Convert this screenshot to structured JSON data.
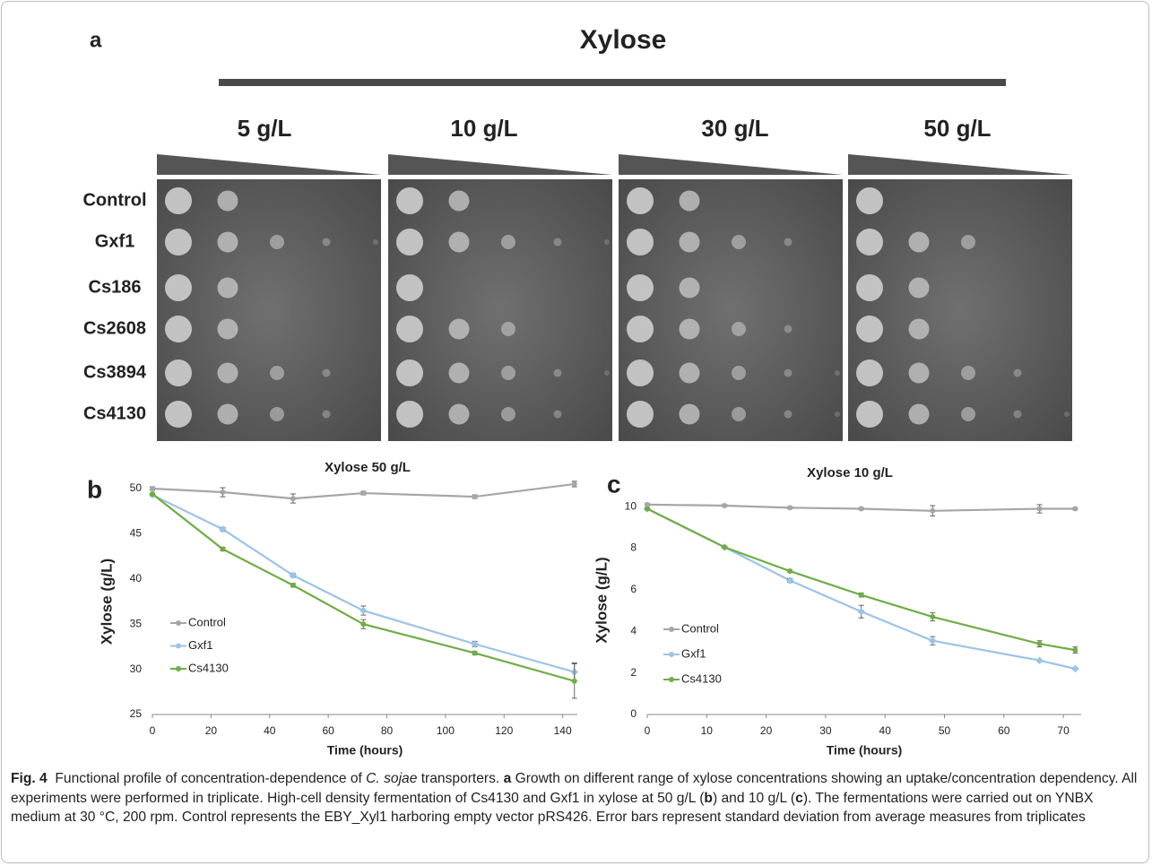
{
  "panel_a": {
    "label": "a",
    "title": "Xylose",
    "concentrations": [
      "5 g/L",
      "10 g/L",
      "30 g/L",
      "50 g/L"
    ],
    "strains": [
      "Control",
      "Gxf1",
      "Cs186",
      "Cs2608",
      "Cs3894",
      "Cs4130"
    ]
  },
  "chart_data": [
    {
      "type": "line",
      "label": "b",
      "title": "Xylose 50 g/L",
      "x_label": "Time (hours)",
      "y_label": "Xylose (g/L)",
      "x": [
        0,
        24,
        48,
        72,
        110,
        144
      ],
      "xlim": [
        0,
        145
      ],
      "xticks": [
        0,
        20,
        40,
        60,
        80,
        100,
        120,
        140
      ],
      "ylim": [
        25,
        50
      ],
      "yticks": [
        25,
        30,
        35,
        40,
        45,
        50
      ],
      "legend": "left",
      "series": [
        {
          "name": "Control",
          "color": "#a6a6a6",
          "values": [
            50,
            49.6,
            48.9,
            49.5,
            49.1,
            50.5
          ],
          "errors": [
            0.2,
            0.5,
            0.5,
            0.2,
            0.2,
            0.3
          ]
        },
        {
          "name": "Gxf1",
          "color": "#9dc3e6",
          "values": [
            49.3,
            45.5,
            40.4,
            36.5,
            32.8,
            29.7
          ],
          "errors": [
            0.1,
            0.2,
            0.2,
            0.5,
            0.3,
            1
          ]
        },
        {
          "name": "Cs4130",
          "color": "#70ad47",
          "values": [
            49.4,
            43.3,
            39.3,
            35,
            31.8,
            28.7
          ],
          "errors": [
            0.1,
            0.2,
            0.2,
            0.5,
            0.2,
            1.9
          ]
        }
      ]
    },
    {
      "type": "line",
      "label": "c",
      "title": "Xylose 10 g/L",
      "x_label": "Time (hours)",
      "y_label": "Xylose (g/L)",
      "x": [
        0,
        13,
        24,
        36,
        48,
        66,
        72
      ],
      "xlim": [
        0,
        73
      ],
      "xticks": [
        0,
        10,
        20,
        30,
        40,
        50,
        60,
        70
      ],
      "ylim": [
        0,
        11
      ],
      "yticks": [
        0,
        2,
        4,
        6,
        8,
        10
      ],
      "legend": "left",
      "series": [
        {
          "name": "Control",
          "color": "#a6a6a6",
          "values": [
            10.1,
            10.05,
            9.95,
            9.9,
            9.8,
            9.9,
            9.9
          ],
          "errors": [
            0.05,
            0.05,
            0.05,
            0.05,
            0.25,
            0.2,
            0.05
          ]
        },
        {
          "name": "Gxf1",
          "color": "#9dc3e6",
          "values": [
            9.9,
            8.05,
            6.45,
            4.95,
            3.55,
            2.6,
            2.2
          ],
          "errors": [
            0.05,
            0.05,
            0.1,
            0.3,
            0.2,
            0.05,
            0.05
          ]
        },
        {
          "name": "Cs4130",
          "color": "#70ad47",
          "values": [
            9.9,
            8.05,
            6.9,
            5.75,
            4.7,
            3.4,
            3.1
          ],
          "errors": [
            0.05,
            0.05,
            0.05,
            0.1,
            0.2,
            0.15,
            0.15
          ]
        }
      ]
    }
  ],
  "caption": {
    "label": "Fig. 4",
    "segments": [
      {
        "text": "Functional profile of concentration-dependence of ",
        "style": "normal"
      },
      {
        "text": "C. sojae",
        "style": "italic"
      },
      {
        "text": " transporters. ",
        "style": "normal"
      },
      {
        "text": "a",
        "style": "bold"
      },
      {
        "text": " Growth on different range of xylose concentrations showing an uptake/concentration dependency. All experiments were performed in triplicate. High-cell density fermentation of Cs4130 and Gxf1 in xylose at 50 g/L (",
        "style": "normal"
      },
      {
        "text": "b",
        "style": "bold"
      },
      {
        "text": ") and 10 g/L (",
        "style": "normal"
      },
      {
        "text": "c",
        "style": "bold"
      },
      {
        "text": "). The fermentations were carried out on YNBX medium at 30 °C, 200 rpm. Control represents the EBY_Xyl1 harboring empty vector pRS426. Error bars represent standard deviation from average measures from triplicates",
        "style": "normal"
      }
    ]
  }
}
